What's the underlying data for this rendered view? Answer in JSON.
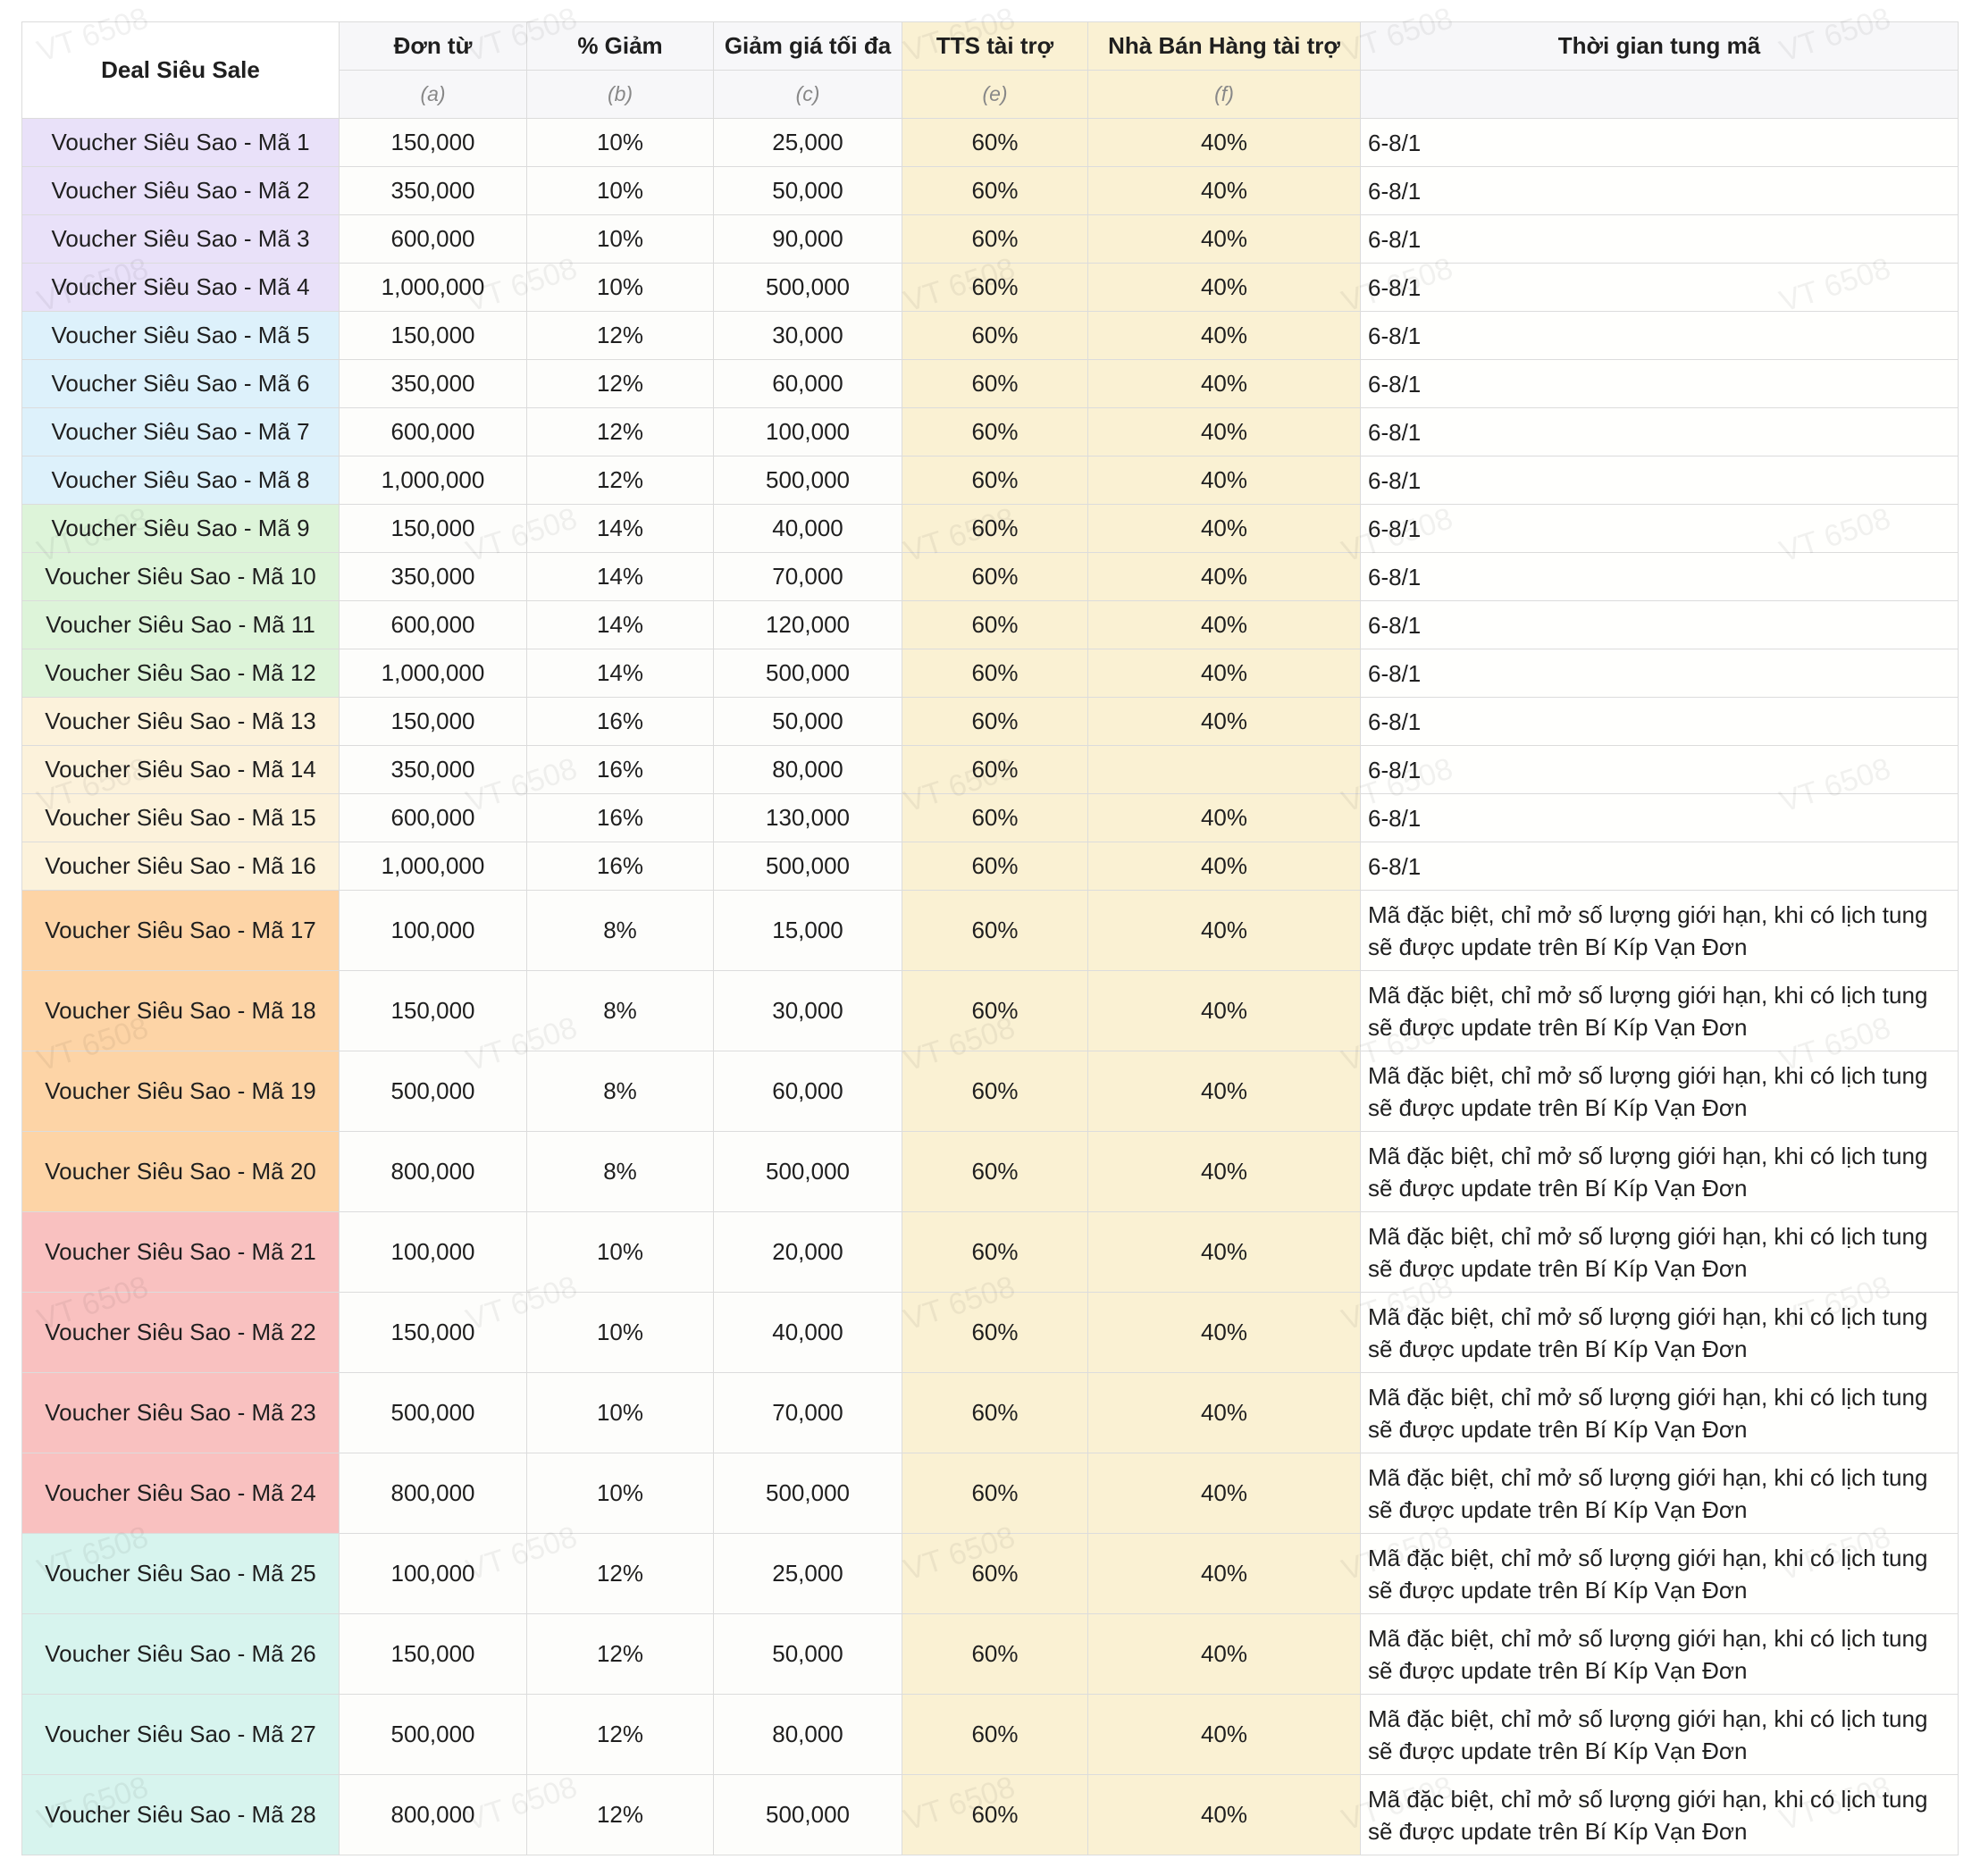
{
  "watermark": "VT 6508",
  "table": {
    "header": {
      "title": "Deal Siêu Sale",
      "columns": [
        "Đơn từ",
        "% Giảm",
        "Giảm giá tối đa",
        "TTS tài trợ",
        "Nhà Bán Hàng tài trợ",
        "Thời gian tung mã"
      ],
      "notes": [
        "(a)",
        "(b)",
        "(c)",
        "(e)",
        "(f)"
      ]
    },
    "rows": [
      [
        "Voucher Siêu Sao - Mã 1",
        "150,000",
        "10%",
        "25,000",
        "60%",
        "40%",
        "6-8/1"
      ],
      [
        "Voucher Siêu Sao - Mã 2",
        "350,000",
        "10%",
        "50,000",
        "60%",
        "40%",
        "6-8/1"
      ],
      [
        "Voucher Siêu Sao - Mã 3",
        "600,000",
        "10%",
        "90,000",
        "60%",
        "40%",
        "6-8/1"
      ],
      [
        "Voucher Siêu Sao - Mã 4",
        "1,000,000",
        "10%",
        "500,000",
        "60%",
        "40%",
        "6-8/1"
      ],
      [
        "Voucher Siêu Sao - Mã 5",
        "150,000",
        "12%",
        "30,000",
        "60%",
        "40%",
        "6-8/1"
      ],
      [
        "Voucher Siêu Sao - Mã 6",
        "350,000",
        "12%",
        "60,000",
        "60%",
        "40%",
        "6-8/1"
      ],
      [
        "Voucher Siêu Sao - Mã 7",
        "600,000",
        "12%",
        "100,000",
        "60%",
        "40%",
        "6-8/1"
      ],
      [
        "Voucher Siêu Sao - Mã 8",
        "1,000,000",
        "12%",
        "500,000",
        "60%",
        "40%",
        "6-8/1"
      ],
      [
        "Voucher Siêu Sao - Mã 9",
        "150,000",
        "14%",
        "40,000",
        "60%",
        "40%",
        "6-8/1"
      ],
      [
        "Voucher Siêu Sao - Mã 10",
        "350,000",
        "14%",
        "70,000",
        "60%",
        "40%",
        "6-8/1"
      ],
      [
        "Voucher Siêu Sao - Mã 11",
        "600,000",
        "14%",
        "120,000",
        "60%",
        "40%",
        "6-8/1"
      ],
      [
        "Voucher Siêu Sao - Mã 12",
        "1,000,000",
        "14%",
        "500,000",
        "60%",
        "40%",
        "6-8/1"
      ],
      [
        "Voucher Siêu Sao - Mã 13",
        "150,000",
        "16%",
        "50,000",
        "60%",
        "40%",
        "6-8/1"
      ],
      [
        "Voucher Siêu Sao - Mã 14",
        "350,000",
        "16%",
        "80,000",
        "60%",
        null,
        "6-8/1"
      ],
      [
        "Voucher Siêu Sao - Mã 15",
        "600,000",
        "16%",
        "130,000",
        "60%",
        "40%",
        "6-8/1"
      ],
      [
        "Voucher Siêu Sao - Mã 16",
        "1,000,000",
        "16%",
        "500,000",
        "60%",
        "40%",
        "6-8/1"
      ],
      [
        "Voucher Siêu Sao - Mã 17",
        "100,000",
        "8%",
        "15,000",
        "60%",
        "40%",
        "Mã đặc biệt, chỉ mở số lượng giới hạn, khi có lịch tung sẽ được update trên Bí Kíp Vạn Đơn"
      ],
      [
        "Voucher Siêu Sao - Mã 18",
        "150,000",
        "8%",
        "30,000",
        "60%",
        "40%",
        "Mã đặc biệt, chỉ mở số lượng giới hạn, khi có lịch tung sẽ được update trên Bí Kíp Vạn Đơn"
      ],
      [
        "Voucher Siêu Sao - Mã 19",
        "500,000",
        "8%",
        "60,000",
        "60%",
        "40%",
        "Mã đặc biệt, chỉ mở số lượng giới hạn, khi có lịch tung sẽ được update trên Bí Kíp Vạn Đơn"
      ],
      [
        "Voucher Siêu Sao - Mã 20",
        "800,000",
        "8%",
        "500,000",
        "60%",
        "40%",
        "Mã đặc biệt, chỉ mở số lượng giới hạn, khi có lịch tung sẽ được update trên Bí Kíp Vạn Đơn"
      ],
      [
        "Voucher Siêu Sao - Mã 21",
        "100,000",
        "10%",
        "20,000",
        "60%",
        "40%",
        "Mã đặc biệt, chỉ mở số lượng giới hạn, khi có lịch tung sẽ được update trên Bí Kíp Vạn Đơn"
      ],
      [
        "Voucher Siêu Sao - Mã 22",
        "150,000",
        "10%",
        "40,000",
        "60%",
        "40%",
        "Mã đặc biệt, chỉ mở số lượng giới hạn, khi có lịch tung sẽ được update trên Bí Kíp Vạn Đơn"
      ],
      [
        "Voucher Siêu Sao - Mã 23",
        "500,000",
        "10%",
        "70,000",
        "60%",
        "40%",
        "Mã đặc biệt, chỉ mở số lượng giới hạn, khi có lịch tung sẽ được update trên Bí Kíp Vạn Đơn"
      ],
      [
        "Voucher Siêu Sao - Mã 24",
        "800,000",
        "10%",
        "500,000",
        "60%",
        "40%",
        "Mã đặc biệt, chỉ mở số lượng giới hạn, khi có lịch tung sẽ được update trên Bí Kíp Vạn Đơn"
      ],
      [
        "Voucher Siêu Sao - Mã 25",
        "100,000",
        "12%",
        "25,000",
        "60%",
        "40%",
        "Mã đặc biệt, chỉ mở số lượng giới hạn, khi có lịch tung sẽ được update trên Bí Kíp Vạn Đơn"
      ],
      [
        "Voucher Siêu Sao - Mã 26",
        "150,000",
        "12%",
        "50,000",
        "60%",
        "40%",
        "Mã đặc biệt, chỉ mở số lượng giới hạn, khi có lịch tung sẽ được update trên Bí Kíp Vạn Đơn"
      ],
      [
        "Voucher Siêu Sao - Mã 27",
        "500,000",
        "12%",
        "80,000",
        "60%",
        "40%",
        "Mã đặc biệt, chỉ mở số lượng giới hạn, khi có lịch tung sẽ được update trên Bí Kíp Vạn Đơn"
      ],
      [
        "Voucher Siêu Sao - Mã 28",
        "800,000",
        "12%",
        "500,000",
        "60%",
        "40%",
        "Mã đặc biệt, chỉ mở số lượng giới hạn, khi có lịch tung sẽ được update trên Bí Kíp Vạn Đơn"
      ]
    ]
  }
}
